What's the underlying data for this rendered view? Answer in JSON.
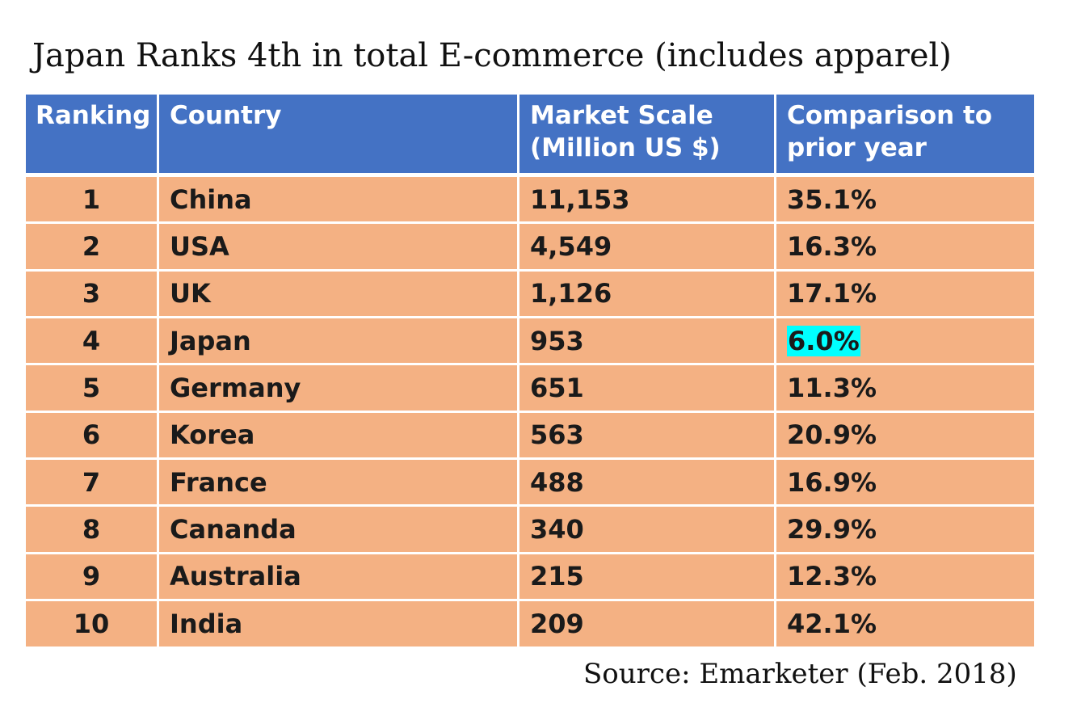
{
  "title": "Japan Ranks 4th in total E-commerce (includes apparel)",
  "colors": {
    "header_bg": "#4472c4",
    "row_bg": "#f4b183",
    "highlight": "#00ffff"
  },
  "chart_data": {
    "type": "table",
    "title": "Japan Ranks 4th in total E-commerce (includes apparel)",
    "columns": [
      "Ranking",
      "Country",
      "Market Scale (Million US $)",
      "Comparison to prior year"
    ],
    "header": {
      "ranking": "Ranking",
      "country": "Country",
      "market_line1": "Market Scale",
      "market_line2": "(Million US $)",
      "comparison_line1": "Comparison to",
      "comparison_line2": "prior year"
    },
    "rows": [
      {
        "rank": "1",
        "country": "China",
        "market": "11,153",
        "comparison": "35.1%"
      },
      {
        "rank": "2",
        "country": "USA",
        "market": "4,549",
        "comparison": "16.3%"
      },
      {
        "rank": "3",
        "country": "UK",
        "market": "1,126",
        "comparison": "17.1%"
      },
      {
        "rank": "4",
        "country": "Japan",
        "market": "953",
        "comparison": "6.0%",
        "highlighted": true
      },
      {
        "rank": "5",
        "country": "Germany",
        "market": "651",
        "comparison": "11.3%"
      },
      {
        "rank": "6",
        "country": "Korea",
        "market": "563",
        "comparison": "20.9%"
      },
      {
        "rank": "7",
        "country": "France",
        "market": "488",
        "comparison": "16.9%"
      },
      {
        "rank": "8",
        "country": "Cananda",
        "market": "340",
        "comparison": "29.9%"
      },
      {
        "rank": "9",
        "country": "Australia",
        "market": "215",
        "comparison": "12.3%"
      },
      {
        "rank": "10",
        "country": "India",
        "market": "209",
        "comparison": "42.1%"
      }
    ]
  },
  "source": "Source: Emarketer (Feb. 2018)"
}
